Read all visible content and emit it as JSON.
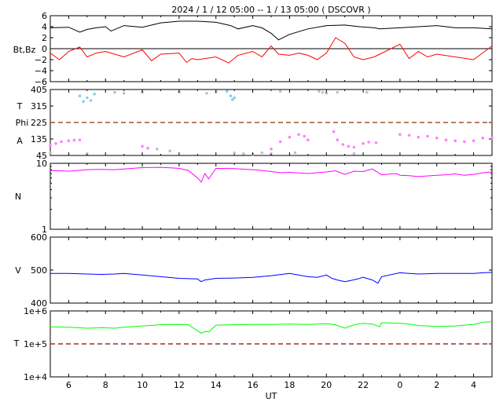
{
  "title": "2024 /   1 / 12   05:00  --   1 / 13   05:00 ( DSCOVR )",
  "xlabel": "UT",
  "x_ticks": [
    "6",
    "8",
    "10",
    "12",
    "14",
    "16",
    "18",
    "20",
    "22",
    "0",
    "2",
    "4"
  ],
  "colors": {
    "bt": "#000000",
    "bz": "#ff0000",
    "theta": "#87ceeb",
    "phi_dash": "#a0522d",
    "phi_away": "#ff80ff",
    "phi_other": "#c0c0c0",
    "density": "#ff00ff",
    "speed": "#0000ff",
    "temp": "#00ff00",
    "temp_ref": "#a52a2a"
  },
  "chart_data": [
    {
      "type": "line",
      "panel": "magnetic-field",
      "ylabel": "Bt,Bz",
      "yticks": [
        "6",
        "4",
        "2",
        "0",
        "−2",
        "−4",
        "−6"
      ],
      "ylim": [
        -6,
        6
      ],
      "x_range_hours": [
        5,
        29
      ],
      "series": [
        {
          "key": "bt",
          "x": [
            5.0,
            6.0,
            6.6,
            7.0,
            7.5,
            8.0,
            8.3,
            9.0,
            10.0,
            11.0,
            12.0,
            13.0,
            14.0,
            14.8,
            15.2,
            16.0,
            16.5,
            17.0,
            17.4,
            18.0,
            19.0,
            20.0,
            21.0,
            21.8,
            22.6,
            22.9,
            24.0,
            25.0,
            26.0,
            27.0,
            28.0,
            29.0
          ],
          "y": [
            3.8,
            3.9,
            3.0,
            3.5,
            3.8,
            4.0,
            3.2,
            4.2,
            3.9,
            4.7,
            5.0,
            5.0,
            4.8,
            4.2,
            3.6,
            4.2,
            3.8,
            2.8,
            1.6,
            2.6,
            3.6,
            4.2,
            4.3,
            4.0,
            3.8,
            3.6,
            3.8,
            4.0,
            4.2,
            3.8,
            3.8,
            3.6
          ]
        },
        {
          "key": "bz",
          "x": [
            5.0,
            5.5,
            6.0,
            6.6,
            7.0,
            7.5,
            8.0,
            8.3,
            9.0,
            10.0,
            10.5,
            11.0,
            12.0,
            12.4,
            12.7,
            13.0,
            14.0,
            14.7,
            15.2,
            16.0,
            16.5,
            17.0,
            17.4,
            18.0,
            18.5,
            19.0,
            19.5,
            20.0,
            20.5,
            21.0,
            21.5,
            22.0,
            22.6,
            22.9,
            24.0,
            24.5,
            25.0,
            25.5,
            26.0,
            27.0,
            28.0,
            29.0
          ],
          "y": [
            -0.8,
            -2.0,
            -0.5,
            0.3,
            -1.5,
            -0.8,
            -0.5,
            -0.8,
            -1.5,
            -0.2,
            -2.2,
            -1.0,
            -0.8,
            -2.5,
            -1.8,
            -2.0,
            -1.5,
            -2.6,
            -1.2,
            -0.5,
            -1.5,
            0.5,
            -1.0,
            -1.2,
            -0.8,
            -1.2,
            -2.0,
            -0.8,
            2.0,
            1.0,
            -1.5,
            -2.0,
            -1.5,
            -1.0,
            0.8,
            -1.8,
            -0.5,
            -1.5,
            -1.0,
            -1.5,
            -2.0,
            0.5
          ]
        }
      ]
    },
    {
      "type": "scatter",
      "panel": "imf-angles",
      "ylabels": [
        "T",
        "Phi",
        "A"
      ],
      "yticks": [
        "405",
        "315",
        "225",
        "135",
        "45"
      ],
      "ylim": [
        45,
        405
      ],
      "reference_line": 225,
      "series": [
        {
          "key": "theta",
          "x": [
            6.6,
            6.8,
            7.0,
            7.2,
            7.4,
            14.6,
            14.8,
            14.9,
            15.0
          ],
          "y": [
            370,
            340,
            360,
            345,
            380,
            395,
            370,
            350,
            360
          ]
        },
        {
          "key": "phi_away",
          "x": [
            5.0,
            5.3,
            5.6,
            6.0,
            6.3,
            6.6,
            10.0,
            10.3,
            17.0,
            17.5,
            18.0,
            18.5,
            18.8,
            19.0,
            20.4,
            20.6,
            20.9,
            21.2,
            21.5,
            22.0,
            22.3,
            22.7,
            24.0,
            24.5,
            25.0,
            25.5,
            26.0,
            26.5,
            27.0,
            27.5,
            28.0,
            28.5,
            29.0
          ],
          "y": [
            100,
            110,
            120,
            125,
            128,
            130,
            95,
            85,
            80,
            120,
            145,
            160,
            150,
            130,
            175,
            130,
            105,
            95,
            90,
            110,
            118,
            115,
            160,
            155,
            145,
            150,
            140,
            130,
            125,
            120,
            125,
            140,
            140
          ]
        },
        {
          "key": "phi_other",
          "x": [
            5.0,
            7.0,
            8.5,
            9.0,
            10.0,
            10.8,
            11.5,
            12.0,
            13.5,
            14.0,
            15.0,
            15.5,
            16.0,
            16.5,
            17.0,
            17.5,
            18.3,
            19.6,
            19.8,
            20.0,
            20.6,
            21.5,
            22.2
          ],
          "y": [
            60,
            55,
            390,
            385,
            390,
            80,
            70,
            390,
            385,
            390,
            60,
            55,
            50,
            60,
            55,
            395,
            60,
            395,
            390,
            385,
            390,
            55,
            390
          ]
        }
      ]
    },
    {
      "type": "line",
      "panel": "density",
      "ylabel": "N",
      "yticks": [
        "10",
        "1"
      ],
      "yscale": "log",
      "ylim": [
        1,
        10
      ],
      "series": [
        {
          "key": "density",
          "x": [
            5.0,
            6.0,
            7.0,
            7.8,
            8.5,
            9.0,
            10.0,
            11.0,
            12.0,
            12.5,
            13.0,
            13.2,
            13.4,
            13.6,
            14.0,
            15.0,
            16.0,
            16.5,
            17.0,
            17.5,
            18.0,
            19.0,
            20.0,
            20.5,
            21.0,
            21.5,
            22.0,
            22.5,
            23.0,
            23.8,
            24.0,
            24.5,
            25.0,
            26.0,
            26.5,
            27.0,
            27.5,
            28.0,
            28.5,
            29.0
          ],
          "y": [
            7.8,
            7.6,
            8.0,
            8.1,
            8.0,
            8.2,
            8.6,
            8.7,
            8.4,
            7.8,
            6.0,
            5.2,
            7.0,
            5.8,
            8.4,
            8.3,
            8.0,
            7.8,
            7.5,
            7.2,
            7.3,
            7.0,
            7.4,
            7.7,
            6.8,
            7.6,
            7.5,
            8.2,
            6.7,
            7.0,
            6.6,
            6.5,
            6.3,
            6.6,
            6.7,
            6.9,
            6.6,
            6.8,
            7.2,
            7.4
          ]
        }
      ]
    },
    {
      "type": "line",
      "panel": "speed",
      "ylabel": "V",
      "yticks": [
        "600",
        "500",
        "400"
      ],
      "ylim": [
        400,
        600
      ],
      "series": [
        {
          "key": "speed",
          "x": [
            5.0,
            6.0,
            7.0,
            7.8,
            8.5,
            9.0,
            10.0,
            11.0,
            12.0,
            12.5,
            13.0,
            13.2,
            13.4,
            14.0,
            15.0,
            16.0,
            17.0,
            18.0,
            18.5,
            19.0,
            19.5,
            20.0,
            20.3,
            20.6,
            21.0,
            21.3,
            21.7,
            22.0,
            22.5,
            22.8,
            23.0,
            24.0,
            24.5,
            25.0,
            26.0,
            27.0,
            28.0,
            28.5,
            29.0
          ],
          "y": [
            490,
            490,
            488,
            487,
            488,
            490,
            485,
            480,
            475,
            474,
            473,
            465,
            470,
            475,
            476,
            478,
            483,
            490,
            485,
            480,
            478,
            485,
            475,
            470,
            465,
            468,
            473,
            478,
            470,
            460,
            480,
            492,
            490,
            488,
            490,
            490,
            490,
            492,
            493
          ]
        }
      ]
    },
    {
      "type": "line",
      "panel": "temperature",
      "ylabel": "T",
      "yticks": [
        "1e+6",
        "1e+5",
        "1e+4"
      ],
      "yscale": "log",
      "ylim": [
        10000,
        1000000
      ],
      "reference_line": 100000,
      "series": [
        {
          "key": "temp",
          "x": [
            5.0,
            6.0,
            7.0,
            7.8,
            8.5,
            9.0,
            10.0,
            11.0,
            12.0,
            12.5,
            13.0,
            13.2,
            13.4,
            13.6,
            14.0,
            15.0,
            16.0,
            17.0,
            18.0,
            19.0,
            20.0,
            20.5,
            21.0,
            21.5,
            22.0,
            22.5,
            22.9,
            23.0,
            24.0,
            24.5,
            25.0,
            26.0,
            27.0,
            28.0,
            28.5,
            29.0
          ],
          "y": [
            330000,
            320000,
            300000,
            310000,
            300000,
            320000,
            350000,
            380000,
            390000,
            380000,
            250000,
            210000,
            240000,
            230000,
            370000,
            380000,
            390000,
            390000,
            400000,
            390000,
            410000,
            380000,
            300000,
            380000,
            420000,
            400000,
            330000,
            440000,
            420000,
            400000,
            360000,
            340000,
            350000,
            390000,
            460000,
            470000
          ]
        }
      ]
    }
  ]
}
